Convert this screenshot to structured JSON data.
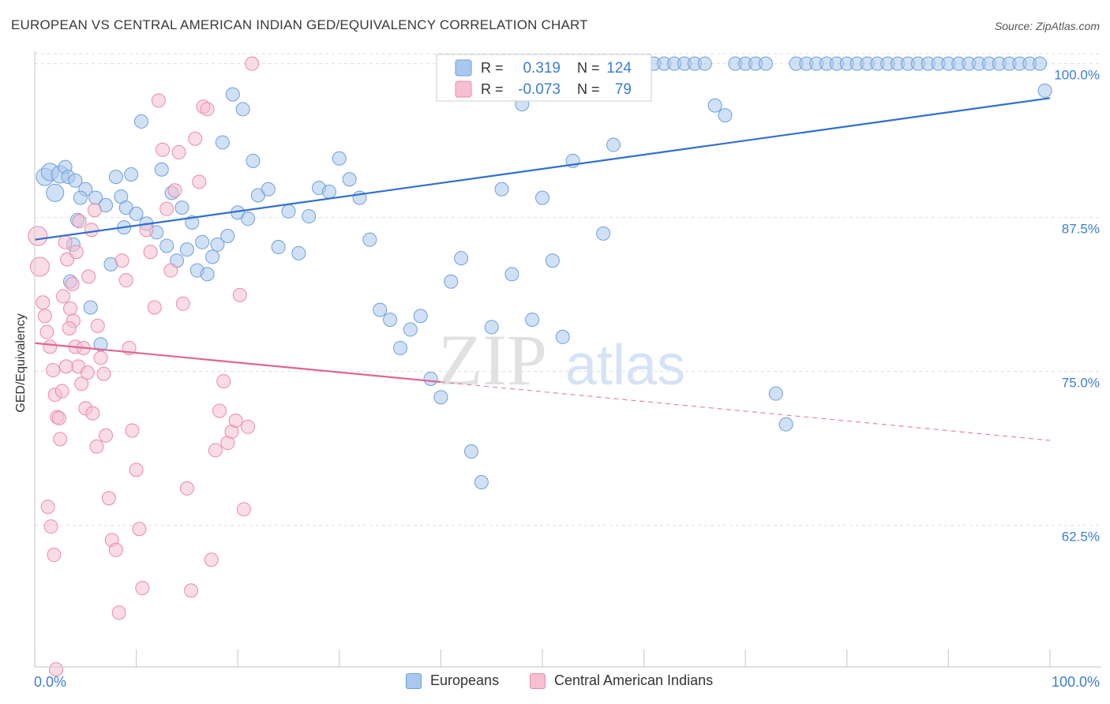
{
  "header": {
    "title": "EUROPEAN VS CENTRAL AMERICAN INDIAN GED/EQUIVALENCY CORRELATION CHART",
    "source": "Source: ZipAtlas.com"
  },
  "legend_box": {
    "rows": [
      {
        "r_label": "R =",
        "r_value": "0.319",
        "n_label": "N =",
        "n_value": "124"
      },
      {
        "r_label": "R =",
        "r_value": "-0.073",
        "n_label": "N =",
        "n_value": "79"
      }
    ]
  },
  "watermark": {
    "zip": "ZIP",
    "atlas": "atlas"
  },
  "chart_data": {
    "type": "scatter",
    "title": "EUROPEAN VS CENTRAL AMERICAN INDIAN GED/EQUIVALENCY CORRELATION CHART",
    "xlabel": "",
    "ylabel": "GED/Equivalency",
    "xlim": [
      0,
      100
    ],
    "ylim": [
      51,
      101
    ],
    "x_tick_labels": [
      "0.0%",
      "100.0%"
    ],
    "y_ticks": [
      62.5,
      75.0,
      87.5,
      100.0
    ],
    "y_tick_labels": [
      "62.5%",
      "75.0%",
      "87.5%",
      "100.0%"
    ],
    "grid": true,
    "colors": {
      "europeans_fill": "#a9c8ef",
      "europeans_stroke": "#6f9fd8",
      "europeans_line": "#2f6fd0",
      "cai_fill": "#f6c0d0",
      "cai_stroke": "#e98aaa",
      "cai_line": "#e0668f",
      "tick_label": "#3b7dd8",
      "grid": "#dddddd"
    },
    "series": [
      {
        "name": "Europeans",
        "trend": {
          "x0": 0,
          "y0": 85.7,
          "x1": 100,
          "y1": 97.2,
          "solid_until": 100
        },
        "points": [
          [
            1,
            90.8
          ],
          [
            1.5,
            91.2
          ],
          [
            2,
            89.5
          ],
          [
            2.5,
            91.0
          ],
          [
            3,
            91.6
          ],
          [
            3.3,
            90.8
          ],
          [
            4,
            90.5
          ],
          [
            5,
            89.8
          ],
          [
            6,
            89.1
          ],
          [
            7,
            88.5
          ],
          [
            8,
            90.8
          ],
          [
            8.5,
            89.2
          ],
          [
            9,
            88.3
          ],
          [
            10,
            87.8
          ],
          [
            11,
            87.0
          ],
          [
            12,
            86.3
          ],
          [
            13,
            85.2
          ],
          [
            14,
            84.0
          ],
          [
            15,
            84.9
          ],
          [
            16,
            83.2
          ],
          [
            17,
            82.9
          ],
          [
            18,
            85.3
          ],
          [
            19,
            86.0
          ],
          [
            20,
            87.9
          ],
          [
            21,
            87.4
          ],
          [
            22,
            89.3
          ],
          [
            23,
            89.8
          ],
          [
            24,
            85.1
          ],
          [
            25,
            88.0
          ],
          [
            26,
            84.6
          ],
          [
            27,
            87.6
          ],
          [
            28,
            89.9
          ],
          [
            29,
            89.6
          ],
          [
            30,
            92.3
          ],
          [
            31,
            90.6
          ],
          [
            32,
            89.1
          ],
          [
            33,
            85.7
          ],
          [
            34,
            80.0
          ],
          [
            35,
            79.2
          ],
          [
            36,
            76.9
          ],
          [
            37,
            78.4
          ],
          [
            38,
            79.5
          ],
          [
            39,
            74.4
          ],
          [
            40,
            72.9
          ],
          [
            41,
            82.3
          ],
          [
            42,
            84.2
          ],
          [
            43,
            68.5
          ],
          [
            44,
            66.0
          ],
          [
            45,
            78.6
          ],
          [
            46,
            89.8
          ],
          [
            47,
            82.9
          ],
          [
            48,
            96.7
          ],
          [
            49,
            79.2
          ],
          [
            50,
            89.1
          ],
          [
            51,
            84.0
          ],
          [
            52,
            77.8
          ],
          [
            53,
            92.1
          ],
          [
            54,
            98.6
          ],
          [
            55,
            99.6
          ],
          [
            56,
            86.2
          ],
          [
            57,
            93.4
          ],
          [
            58,
            100
          ],
          [
            59,
            99.2
          ],
          [
            60,
            100
          ],
          [
            61,
            100
          ],
          [
            62,
            100
          ],
          [
            63,
            100
          ],
          [
            64,
            100
          ],
          [
            65,
            100
          ],
          [
            66,
            100
          ],
          [
            67,
            96.6
          ],
          [
            68,
            95.8
          ],
          [
            69,
            100
          ],
          [
            70,
            100
          ],
          [
            71,
            100
          ],
          [
            72,
            100
          ],
          [
            73,
            73.2
          ],
          [
            74,
            70.7
          ],
          [
            75,
            100
          ],
          [
            76,
            100
          ],
          [
            77,
            100
          ],
          [
            78,
            100
          ],
          [
            79,
            100
          ],
          [
            80,
            100
          ],
          [
            81,
            100
          ],
          [
            82,
            100
          ],
          [
            83,
            100
          ],
          [
            84,
            100
          ],
          [
            85,
            100
          ],
          [
            86,
            100
          ],
          [
            87,
            100
          ],
          [
            88,
            100
          ],
          [
            89,
            100
          ],
          [
            90,
            100
          ],
          [
            91,
            100
          ],
          [
            92,
            100
          ],
          [
            93,
            100
          ],
          [
            94,
            100
          ],
          [
            95,
            100
          ],
          [
            96,
            100
          ],
          [
            97,
            100
          ],
          [
            98,
            100
          ],
          [
            99,
            100
          ],
          [
            99.5,
            97.8
          ],
          [
            3.5,
            82.3
          ],
          [
            3.8,
            85.3
          ],
          [
            4.2,
            87.3
          ],
          [
            4.5,
            89.1
          ],
          [
            5.5,
            80.2
          ],
          [
            6.5,
            77.2
          ],
          [
            7.5,
            83.7
          ],
          [
            8.8,
            86.7
          ],
          [
            9.5,
            91.0
          ],
          [
            10.5,
            95.3
          ],
          [
            12.5,
            91.4
          ],
          [
            13.5,
            89.5
          ],
          [
            14.5,
            88.3
          ],
          [
            15.5,
            87.1
          ],
          [
            16.5,
            85.5
          ],
          [
            17.5,
            84.3
          ],
          [
            18.5,
            93.6
          ],
          [
            19.5,
            97.5
          ],
          [
            20.5,
            96.3
          ],
          [
            21.5,
            92.1
          ]
        ]
      },
      {
        "name": "Central American Indians",
        "trend": {
          "x0": 0,
          "y0": 77.3,
          "x1": 100,
          "y1": 69.4,
          "solid_until": 40
        },
        "points": [
          [
            0.3,
            86.0
          ],
          [
            0.5,
            83.5
          ],
          [
            0.8,
            80.6
          ],
          [
            1,
            79.5
          ],
          [
            1.2,
            78.2
          ],
          [
            1.5,
            77.0
          ],
          [
            1.8,
            75.1
          ],
          [
            2,
            73.1
          ],
          [
            2.2,
            71.3
          ],
          [
            2.5,
            69.5
          ],
          [
            2.8,
            81.1
          ],
          [
            3,
            85.5
          ],
          [
            3.2,
            84.1
          ],
          [
            3.5,
            80.1
          ],
          [
            3.8,
            79.1
          ],
          [
            4,
            77.0
          ],
          [
            4.3,
            75.4
          ],
          [
            4.6,
            74.0
          ],
          [
            5,
            72.0
          ],
          [
            5.3,
            82.7
          ],
          [
            5.6,
            86.5
          ],
          [
            5.9,
            88.1
          ],
          [
            6.2,
            78.7
          ],
          [
            6.5,
            76.1
          ],
          [
            6.8,
            74.8
          ],
          [
            7,
            69.8
          ],
          [
            7.3,
            64.7
          ],
          [
            7.6,
            61.3
          ],
          [
            8,
            60.5
          ],
          [
            8.3,
            55.4
          ],
          [
            8.6,
            84.0
          ],
          [
            9,
            82.4
          ],
          [
            9.3,
            76.9
          ],
          [
            9.6,
            70.2
          ],
          [
            10,
            67.0
          ],
          [
            10.3,
            62.2
          ],
          [
            10.6,
            57.4
          ],
          [
            11,
            86.5
          ],
          [
            11.4,
            84.7
          ],
          [
            11.8,
            80.2
          ],
          [
            12.2,
            97.0
          ],
          [
            12.6,
            93.0
          ],
          [
            13,
            88.2
          ],
          [
            13.4,
            83.2
          ],
          [
            13.8,
            89.7
          ],
          [
            14.2,
            92.8
          ],
          [
            14.6,
            80.5
          ],
          [
            15,
            65.5
          ],
          [
            15.4,
            57.2
          ],
          [
            15.8,
            93.9
          ],
          [
            16.2,
            90.4
          ],
          [
            16.6,
            96.5
          ],
          [
            17,
            96.3
          ],
          [
            17.4,
            59.7
          ],
          [
            17.8,
            68.6
          ],
          [
            18.2,
            71.8
          ],
          [
            18.6,
            74.2
          ],
          [
            19,
            69.2
          ],
          [
            19.4,
            70.1
          ],
          [
            19.8,
            71.0
          ],
          [
            20.2,
            81.2
          ],
          [
            20.6,
            63.8
          ],
          [
            21,
            70.5
          ],
          [
            21.4,
            100
          ],
          [
            1.3,
            64.0
          ],
          [
            1.6,
            62.4
          ],
          [
            1.9,
            60.1
          ],
          [
            2.1,
            50.8
          ],
          [
            2.4,
            71.2
          ],
          [
            2.7,
            73.4
          ],
          [
            3.1,
            75.4
          ],
          [
            3.4,
            78.5
          ],
          [
            3.7,
            82.1
          ],
          [
            4.1,
            84.7
          ],
          [
            4.4,
            87.2
          ],
          [
            4.8,
            76.9
          ],
          [
            5.2,
            74.9
          ],
          [
            5.7,
            71.6
          ],
          [
            6.1,
            68.9
          ]
        ]
      }
    ]
  },
  "bottom_legend": {
    "items": [
      {
        "label": "Europeans"
      },
      {
        "label": "Central American Indians"
      }
    ]
  }
}
